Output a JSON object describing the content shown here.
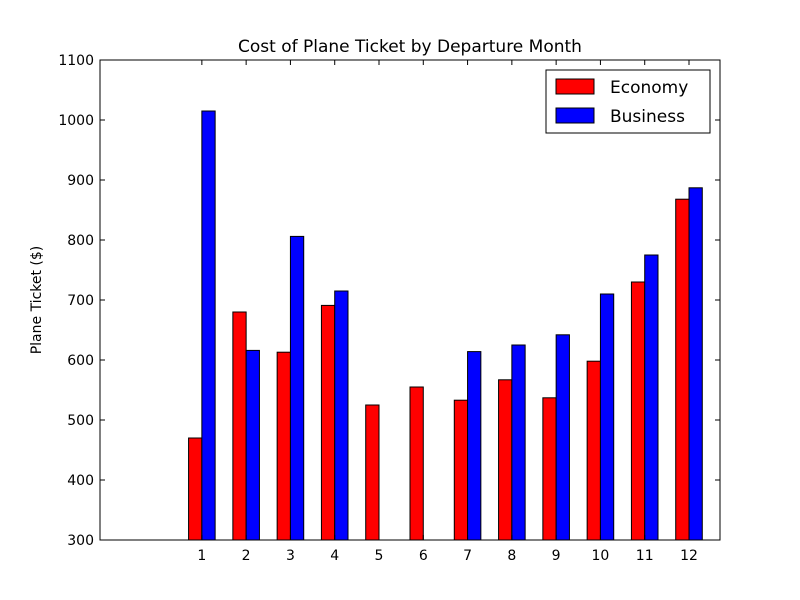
{
  "chart_data": {
    "type": "bar",
    "title": "Cost of Plane Ticket by Departure Month",
    "xlabel": "",
    "ylabel": "Plane Ticket ($)",
    "categories": [
      "1",
      "2",
      "3",
      "4",
      "5",
      "6",
      "7",
      "8",
      "9",
      "10",
      "11",
      "12"
    ],
    "series": [
      {
        "name": "Economy",
        "color": "#ff0000",
        "values": [
          470,
          680,
          613,
          691,
          525,
          555,
          533,
          567,
          537,
          598,
          730,
          868
        ]
      },
      {
        "name": "Business",
        "color": "#0000ff",
        "values": [
          1015,
          616,
          806,
          715,
          null,
          null,
          614,
          625,
          642,
          710,
          775,
          887
        ]
      }
    ],
    "ylim": [
      300,
      1100
    ],
    "yticks": [
      300,
      400,
      500,
      600,
      700,
      800,
      900,
      1000,
      1100
    ],
    "grid": false,
    "legend_position": "top-right"
  }
}
